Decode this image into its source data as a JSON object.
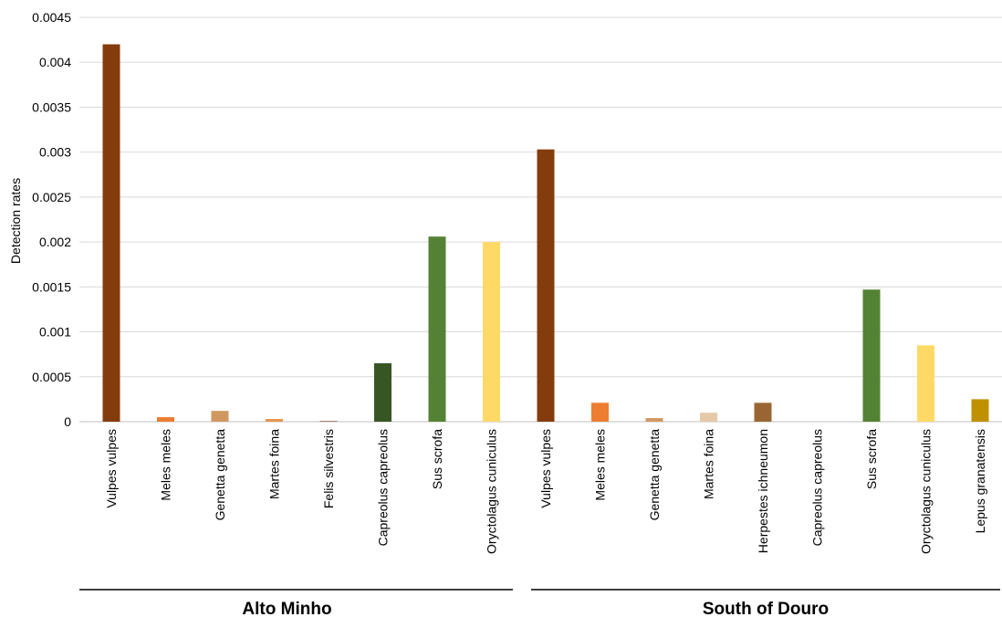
{
  "chart_data": {
    "type": "bar",
    "ylabel": "Detection rates",
    "ylim": [
      0,
      0.0045
    ],
    "yticks": [
      "0",
      "0.0005",
      "0.001",
      "0.0015",
      "0.002",
      "0.0025",
      "0.003",
      "0.0035",
      "0.004",
      "0.0045"
    ],
    "grid": true,
    "groups": [
      {
        "name": "Alto Minho",
        "bars": [
          {
            "category": "Vulpes vulpes",
            "value": 0.0042,
            "color": "#843C0C"
          },
          {
            "category": "Meles meles",
            "value": 5e-05,
            "color": "#ED7D31"
          },
          {
            "category": "Genetta genetta",
            "value": 0.00012,
            "color": "#D09860"
          },
          {
            "category": "Martes foina",
            "value": 3e-05,
            "color": "#E8934A"
          },
          {
            "category": "Felis silvestris",
            "value": 1e-05,
            "color": "#A08470"
          },
          {
            "category": "Capreolus capreolus",
            "value": 0.00065,
            "color": "#375623"
          },
          {
            "category": "Sus scrofa",
            "value": 0.00206,
            "color": "#548235"
          },
          {
            "category": "Oryctolagus cuniculus",
            "value": 0.002,
            "color": "#FFD966"
          }
        ]
      },
      {
        "name": "South of Douro",
        "bars": [
          {
            "category": "Vulpes vulpes",
            "value": 0.00303,
            "color": "#843C0C"
          },
          {
            "category": "Meles meles",
            "value": 0.00021,
            "color": "#ED7D31"
          },
          {
            "category": "Genetta genetta",
            "value": 4e-05,
            "color": "#D09860"
          },
          {
            "category": "Martes foina",
            "value": 0.0001,
            "color": "#E6C9A8"
          },
          {
            "category": "Herpestes ichneumon",
            "value": 0.00021,
            "color": "#996633"
          },
          {
            "category": "Capreolus capreolus",
            "value": 0,
            "color": "#375623"
          },
          {
            "category": "Sus scrofa",
            "value": 0.00147,
            "color": "#548235"
          },
          {
            "category": "Oryctolagus cuniculus",
            "value": 0.00085,
            "color": "#FFD966"
          },
          {
            "category": "Lepus granatensis",
            "value": 0.00025,
            "color": "#BF9000"
          }
        ]
      }
    ]
  }
}
